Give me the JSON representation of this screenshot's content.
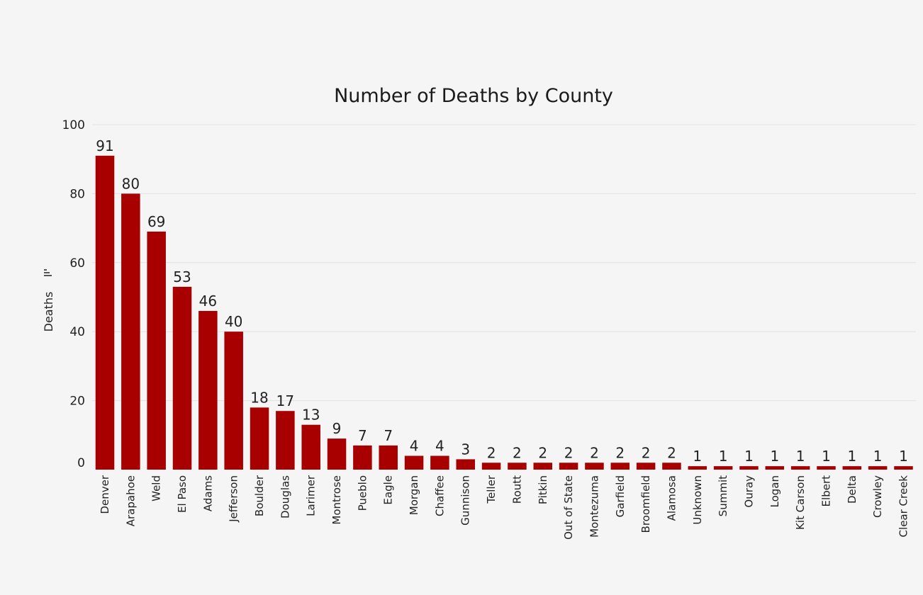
{
  "chart_data": {
    "type": "bar",
    "title": "Number of Deaths by County",
    "xlabel": "",
    "ylabel": "Deaths",
    "ylabel_icon": "sort-bars-icon",
    "ylim": [
      0,
      100
    ],
    "yticks": [
      0,
      20,
      40,
      60,
      80,
      100
    ],
    "grid": true,
    "bar_color": "#a80000",
    "background": "#f5f5f5",
    "data_labels": true,
    "categories": [
      "Denver",
      "Arapahoe",
      "Weld",
      "El Paso",
      "Adams",
      "Jefferson",
      "Boulder",
      "Douglas",
      "Larimer",
      "Montrose",
      "Pueblo",
      "Eagle",
      "Morgan",
      "Chaffee",
      "Gunnison",
      "Teller",
      "Routt",
      "Pitkin",
      "Out of State",
      "Montezuma",
      "Garfield",
      "Broomfield",
      "Alamosa",
      "Unknown",
      "Summit",
      "Ouray",
      "Logan",
      "Kit Carson",
      "Elbert",
      "Delta",
      "Crowley",
      "Clear Creek"
    ],
    "values": [
      91,
      80,
      69,
      53,
      46,
      40,
      18,
      17,
      13,
      9,
      7,
      7,
      4,
      4,
      3,
      2,
      2,
      2,
      2,
      2,
      2,
      2,
      2,
      1,
      1,
      1,
      1,
      1,
      1,
      1,
      1,
      1
    ]
  }
}
